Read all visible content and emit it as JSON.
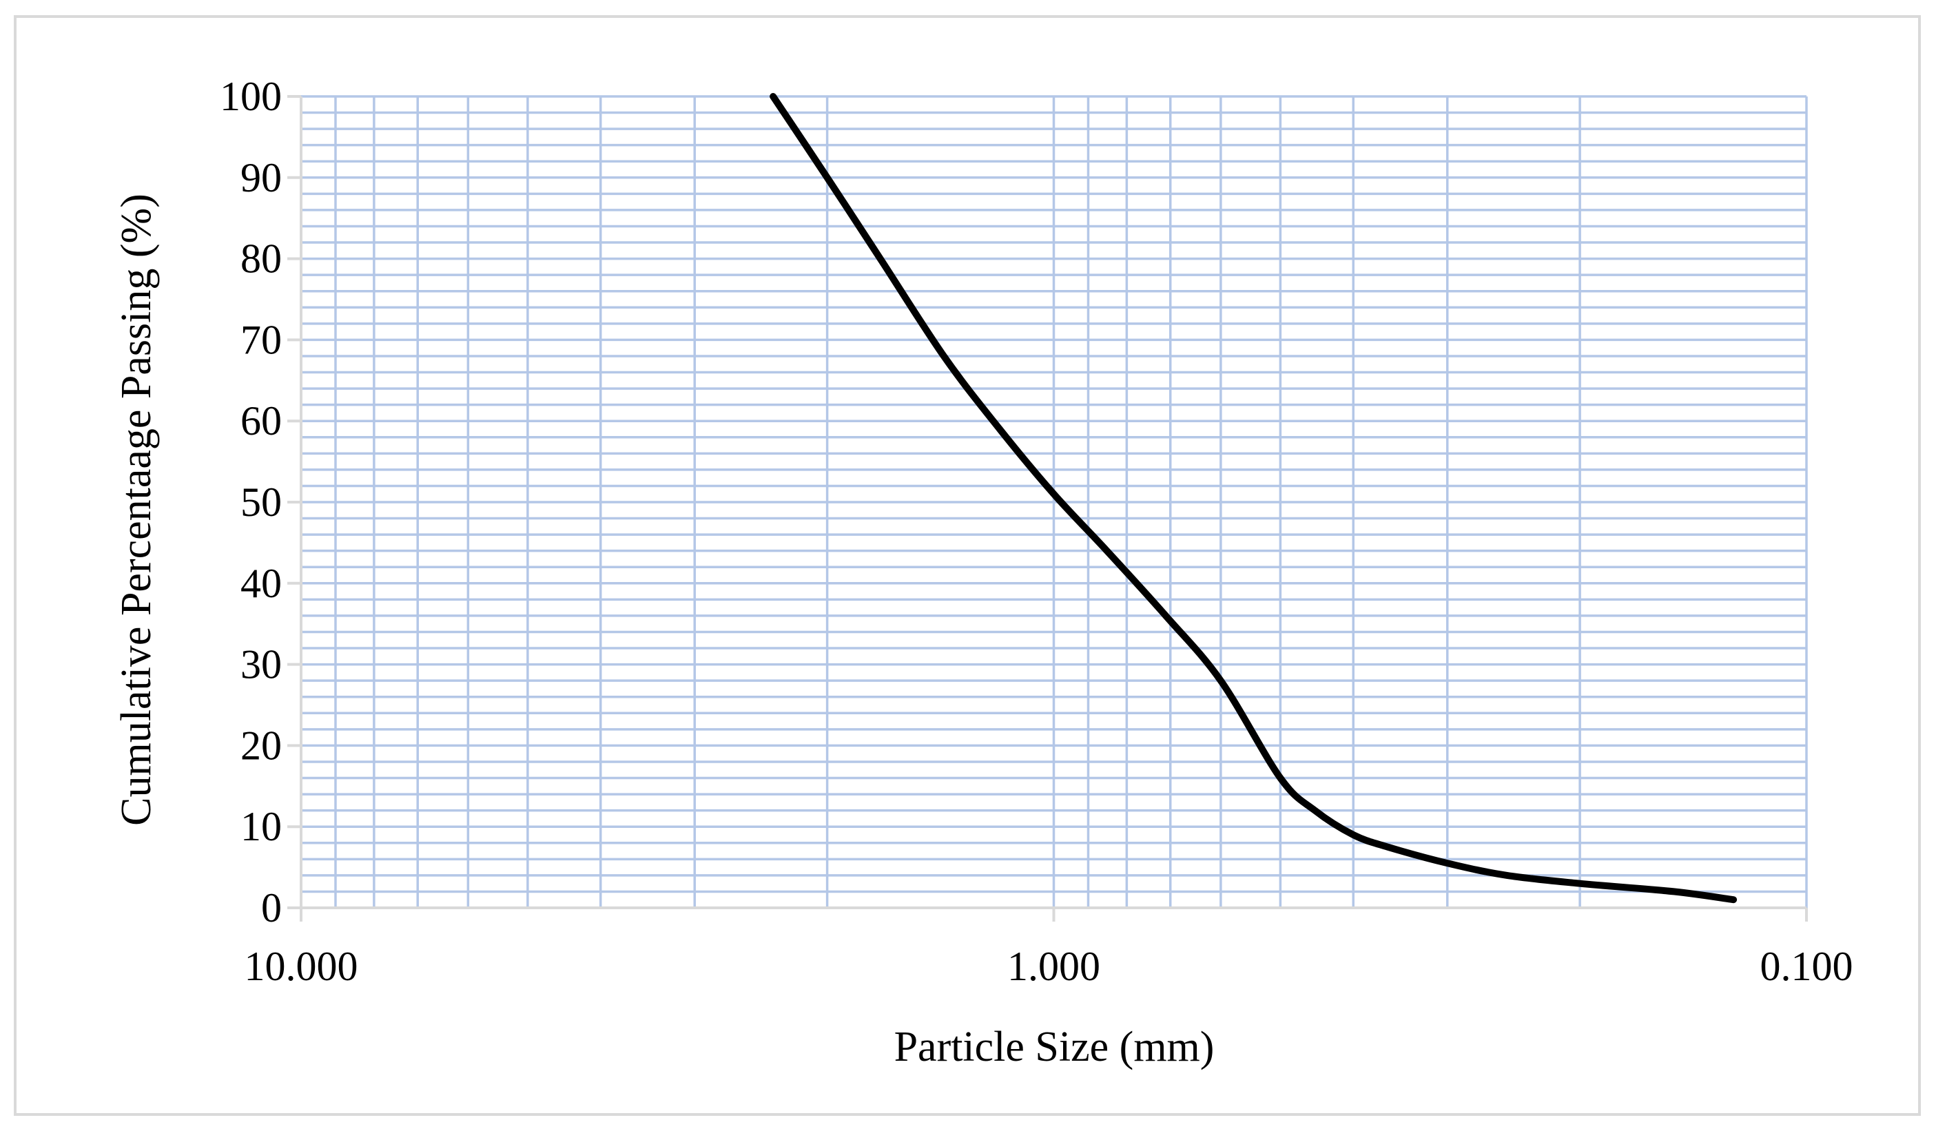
{
  "chart_data": {
    "type": "line",
    "title": "",
    "xlabel": "Particle Size (mm)",
    "ylabel": "Cumulative Percentaage Passing (%)",
    "x_scale": "log",
    "x_reversed": true,
    "xlim": [
      10,
      0.1
    ],
    "ylim": [
      0,
      100
    ],
    "grid": true,
    "legend": "none",
    "x_tick_labels": [
      "10.000",
      "1.000",
      "0.100"
    ],
    "x_tick_values": [
      10,
      1,
      0.1
    ],
    "y_tick_values": [
      0,
      10,
      20,
      30,
      40,
      50,
      60,
      70,
      80,
      90,
      100
    ],
    "y_tick_labels": [
      "0",
      "10",
      "20",
      "30",
      "40",
      "50",
      "60",
      "70",
      "80",
      "90",
      "100"
    ],
    "y_minor_step": 2,
    "series": [
      {
        "color": "#000000",
        "x": [
          2.36,
          2.0,
          1.7,
          1.4,
          1.18,
          1.0,
          0.85,
          0.71,
          0.6,
          0.5,
          0.45,
          0.4,
          0.36,
          0.3,
          0.25,
          0.2,
          0.15,
          0.125
        ],
        "y": [
          100,
          90,
          80,
          68,
          59,
          51,
          44,
          36,
          28,
          16,
          12,
          9,
          7.5,
          5.5,
          4,
          3,
          2,
          1
        ]
      }
    ]
  },
  "colors": {
    "grid": "#b4c7e7",
    "line": "#000000",
    "axis": "#d9d9d9",
    "frame": "#d9d9d9"
  }
}
